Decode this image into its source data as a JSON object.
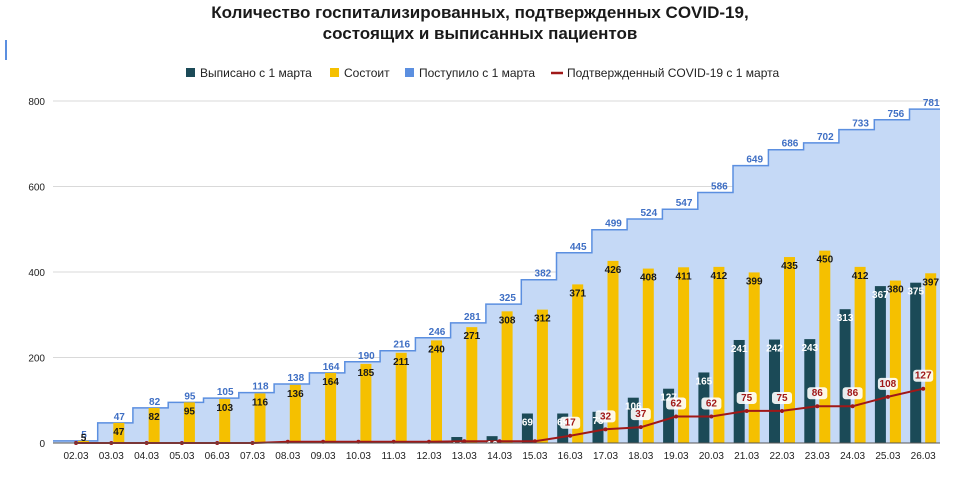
{
  "chart_data": {
    "type": "bar",
    "title_lines": [
      "Количество госпитализированных, подтвержденных COVID-19,",
      "состоящих и выписанных пациентов"
    ],
    "categories": [
      "02.03",
      "03.03",
      "04.03",
      "05.03",
      "06.03",
      "07.03",
      "08.03",
      "09.03",
      "10.03",
      "11.03",
      "12.03",
      "13.03",
      "14.03",
      "15.03",
      "16.03",
      "17.03",
      "18.03",
      "19.03",
      "20.03",
      "21.03",
      "22.03",
      "23.03",
      "24.03",
      "25.03",
      "26.03"
    ],
    "ylim": [
      0,
      800
    ],
    "yticks": [
      0,
      200,
      400,
      600,
      800
    ],
    "grid": true,
    "legend_position": "top",
    "series": [
      {
        "name": "Выписано с 1 марта",
        "kind": "bar",
        "color": "#1b4a57",
        "values": [
          0,
          0,
          0,
          0,
          0,
          0,
          0,
          0,
          0,
          0,
          0,
          14,
          16,
          69,
          69,
          73,
          106,
          127,
          165,
          241,
          242,
          243,
          313,
          367,
          375
        ]
      },
      {
        "name": "Состоит",
        "kind": "bar",
        "color": "#f5c000",
        "values": [
          5,
          47,
          82,
          95,
          103,
          116,
          136,
          164,
          185,
          211,
          240,
          271,
          308,
          312,
          371,
          426,
          408,
          411,
          412,
          399,
          435,
          450,
          412,
          380,
          397
        ]
      },
      {
        "name": "Поступило с 1 марта",
        "kind": "step-area",
        "color": "#5b8fe0",
        "fill": "#c5d9f6",
        "values": [
          5,
          47,
          82,
          95,
          105,
          118,
          138,
          164,
          190,
          216,
          246,
          281,
          325,
          382,
          445,
          499,
          524,
          547,
          586,
          649,
          686,
          702,
          733,
          756,
          781
        ]
      },
      {
        "name": "Подтвержденный COVID-19 с 1 марта",
        "kind": "line",
        "color": "#a01818",
        "values": [
          0,
          0,
          0,
          0,
          0,
          0,
          3,
          3,
          3,
          3,
          3,
          4,
          4,
          4,
          17,
          32,
          37,
          62,
          62,
          75,
          75,
          86,
          86,
          108,
          127
        ]
      }
    ]
  }
}
